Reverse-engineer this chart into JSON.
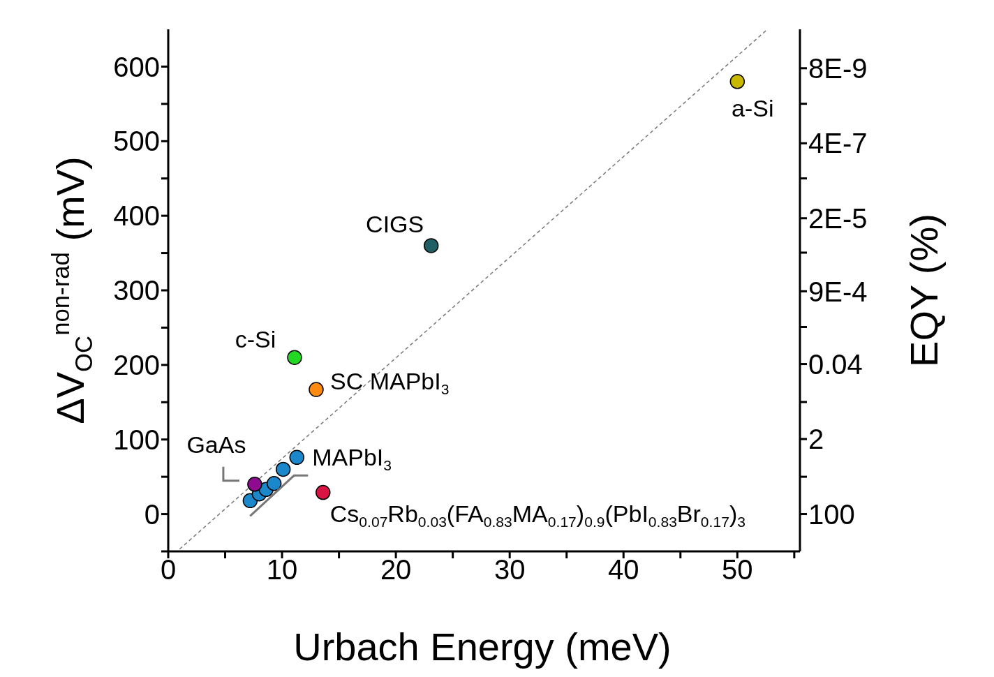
{
  "chart_data": {
    "type": "scatter",
    "xlabel": "Urbach Energy (meV)",
    "ylabel": "ΔV$_{OC}$$^{non-rad}$ (mV)",
    "y2label": "EQY (%)",
    "xlim": [
      0,
      55.5
    ],
    "xticks": [
      0,
      {
        "value": 5,
        "label": null
      },
      10,
      {
        "value": 15,
        "label": null
      },
      20,
      {
        "value": 25,
        "label": null
      },
      30,
      {
        "value": 35,
        "label": null
      },
      40,
      {
        "value": 45,
        "label": null
      },
      50,
      {
        "value": 55,
        "label": null
      }
    ],
    "ylim": [
      -50,
      650
    ],
    "yticks": [
      {
        "value": -50,
        "label": null
      },
      0,
      {
        "value": 50,
        "label": null
      },
      100,
      {
        "value": 150,
        "label": null
      },
      200,
      {
        "value": 250,
        "label": null
      },
      300,
      {
        "value": 350,
        "label": null
      },
      400,
      {
        "value": 450,
        "label": null
      },
      500,
      {
        "value": 550,
        "label": null
      },
      600
    ],
    "y2lim": [
      700,
      1.05e-09
    ],
    "log": "y2",
    "y2ticks": [
      100,
      {
        "value": 14.3,
        "label": null
      },
      2,
      {
        "value": 0.29,
        "label": null
      },
      0.04,
      {
        "value": 0.0058,
        "label": null
      },
      {
        "value": 0.0009,
        "label": "9E-4"
      },
      {
        "value": 0.00012,
        "label": null
      },
      {
        "value": 2e-05,
        "label": "2E-5"
      },
      {
        "value": 2.5e-06,
        "label": null
      },
      {
        "value": 4e-07,
        "label": "4E-7"
      },
      {
        "value": 5.1e-08,
        "label": null
      },
      {
        "value": 8e-09,
        "label": "8E-9"
      }
    ],
    "marker": "circle",
    "series": [
      {
        "type": "line",
        "color": "#777777",
        "line_style": "dashed",
        "marker": "none",
        "x": [
          1,
          52.5
        ],
        "values": [
          -47,
          648
        ]
      },
      {
        "name": "a-Si",
        "color": "#c8b800",
        "x": [
          50
        ],
        "values": [
          580
        ]
      },
      {
        "name": "CIGS",
        "color": "#1d5f63",
        "x": [
          23.1
        ],
        "values": [
          360
        ]
      },
      {
        "name": "c-Si",
        "color": "#22d822",
        "x": [
          11.1
        ],
        "values": [
          210
        ]
      },
      {
        "name": "SC MAPbI$_{3}$",
        "color": "#ff8a10",
        "x": [
          13
        ],
        "values": [
          167
        ]
      },
      {
        "name": "MAPbI$_{3}$",
        "color": "#1b88cc",
        "x": [
          7.2,
          8,
          8.6,
          9.3,
          10.1,
          11.3
        ],
        "values": [
          18,
          27,
          33,
          41,
          60,
          76
        ]
      },
      {
        "name": "GaAs",
        "color": "#8e0a8e",
        "x": [
          7.6
        ],
        "values": [
          40
        ]
      },
      {
        "name": "Cs$_{0.07}$Rb$_{0.03}$(FA$_{0.83}$MA$_{0.17}$)$_{0.9}$(PbI$_{0.83}$Br$_{0.17}$)$_{3}$",
        "color": "#d81443",
        "x": [
          13.6
        ],
        "values": [
          29
        ]
      }
    ]
  }
}
